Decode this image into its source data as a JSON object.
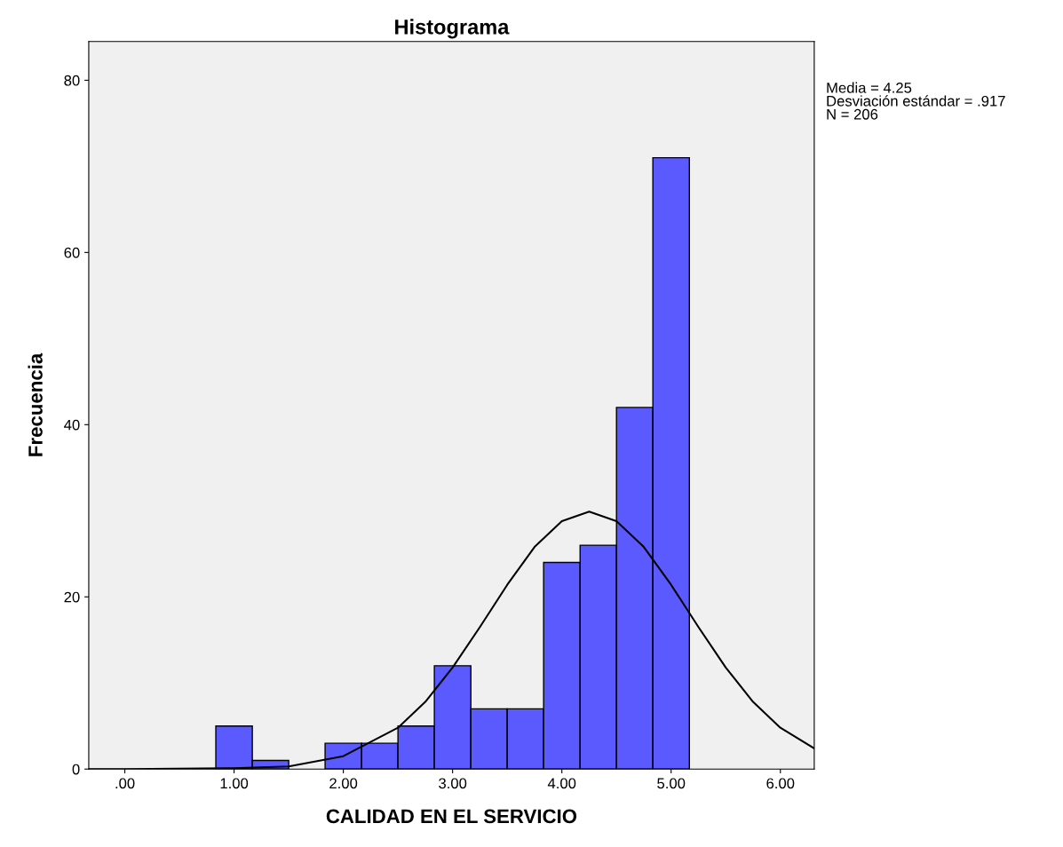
{
  "chart_data": {
    "type": "histogram",
    "title": "Histograma",
    "xlabel": "CALIDAD EN EL SERVICIO",
    "ylabel": "Frecuencia",
    "bins": [
      0.833,
      1.167,
      1.5,
      1.833,
      2.167,
      2.5,
      2.833,
      3.167,
      3.5,
      3.833,
      4.167,
      4.5,
      4.833,
      5.167
    ],
    "values": [
      5,
      1,
      0,
      3,
      3,
      5,
      12,
      7,
      7,
      24,
      26,
      42,
      71
    ],
    "color": "#5a5aff",
    "series": [
      {
        "type": "line",
        "color": "#000000",
        "x": [
          -0.33,
          0,
          1,
          1.5,
          2,
          2.5,
          2.75,
          3,
          3.25,
          3.5,
          3.75,
          4,
          4.25,
          4.5,
          4.75,
          5,
          5.25,
          5.5,
          5.75,
          6,
          6.31
        ],
        "values": [
          0,
          0,
          0.1,
          0.3,
          1.5,
          4.8,
          7.8,
          11.8,
          16.5,
          21.4,
          25.8,
          28.8,
          29.9,
          28.8,
          25.8,
          21.4,
          16.5,
          11.8,
          7.8,
          4.8,
          2.4
        ]
      }
    ],
    "xlim": [
      -0.33,
      6.31
    ],
    "xticks": [
      {
        "value": 0,
        "label": ".00"
      },
      {
        "value": 1,
        "label": "1.00"
      },
      {
        "value": 2,
        "label": "2.00"
      },
      {
        "value": 3,
        "label": "3.00"
      },
      {
        "value": 4,
        "label": "4.00"
      },
      {
        "value": 5,
        "label": "5.00"
      },
      {
        "value": 6,
        "label": "6.00"
      }
    ],
    "ylim": [
      0,
      84.5
    ],
    "yticks": [
      0,
      20,
      40,
      60,
      80
    ],
    "annotations": [
      "Media = 4.25",
      "Desviación estándar = .917",
      "N = 206"
    ],
    "grid": false,
    "legend": false
  }
}
